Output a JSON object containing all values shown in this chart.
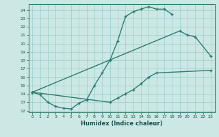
{
  "xlabel": "Humidex (Indice chaleur)",
  "line_color": "#2a7d6e",
  "bg_color": "#cce8e4",
  "grid_color": "#99cccc",
  "line1_x": [
    0,
    1,
    2,
    3,
    4,
    5,
    6,
    7,
    8,
    9,
    10,
    11,
    12,
    13,
    14,
    15,
    16,
    17,
    18
  ],
  "line1_y": [
    14.2,
    13.9,
    13.0,
    12.5,
    12.3,
    12.2,
    12.9,
    13.3,
    15.0,
    16.5,
    18.0,
    20.3,
    23.2,
    23.8,
    24.1,
    24.4,
    24.1,
    24.1,
    23.5
  ],
  "line2_x": [
    0,
    19,
    20,
    21,
    23
  ],
  "line2_y": [
    14.2,
    21.5,
    21.0,
    20.8,
    18.5
  ],
  "line3_x": [
    0,
    10,
    11,
    12,
    13,
    14,
    15,
    16,
    23
  ],
  "line3_y": [
    14.2,
    13.0,
    13.5,
    14.0,
    14.5,
    15.2,
    16.0,
    16.5,
    16.8
  ],
  "ylim": [
    11.8,
    24.7
  ],
  "xlim": [
    -0.5,
    23.5
  ],
  "yticks": [
    12,
    13,
    14,
    15,
    16,
    17,
    18,
    19,
    20,
    21,
    22,
    23,
    24
  ],
  "xticks": [
    0,
    1,
    2,
    3,
    4,
    5,
    6,
    7,
    8,
    9,
    10,
    11,
    12,
    13,
    14,
    15,
    16,
    17,
    18,
    19,
    20,
    21,
    22,
    23
  ]
}
